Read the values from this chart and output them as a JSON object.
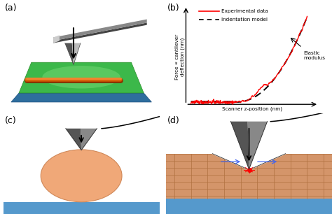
{
  "panel_labels": [
    "(a)",
    "(b)",
    "(c)",
    "(d)"
  ],
  "bg_color": "#ffffff",
  "xlabel": "Scanner z-position (nm)",
  "ylabel": "Force ∝ cantilever\ndeflection (nm)",
  "legend_exp": "Experimental data",
  "legend_ind": "Indentation model",
  "exp_color": "#ff0000",
  "ind_color": "#000000",
  "elastic_label": "Elastic\nmodulus",
  "green_top": "#3cb84a",
  "green_light": "#7ddc7d",
  "blue_side": "#2e6e9e",
  "blue_base": "#5599cc",
  "orange_fiber": "#cc5500",
  "cant_dark": "#444444",
  "cant_mid": "#888888",
  "cant_light": "#cccccc",
  "tip_dark": "#555555",
  "tip_mid": "#888888",
  "tip_light": "#bbbbbb",
  "sphere_color": "#f0a878",
  "sphere_edge": "#d08858",
  "mat_color": "#d4956a",
  "mat_grid": "#b07040",
  "mat_dark": "#c08050"
}
